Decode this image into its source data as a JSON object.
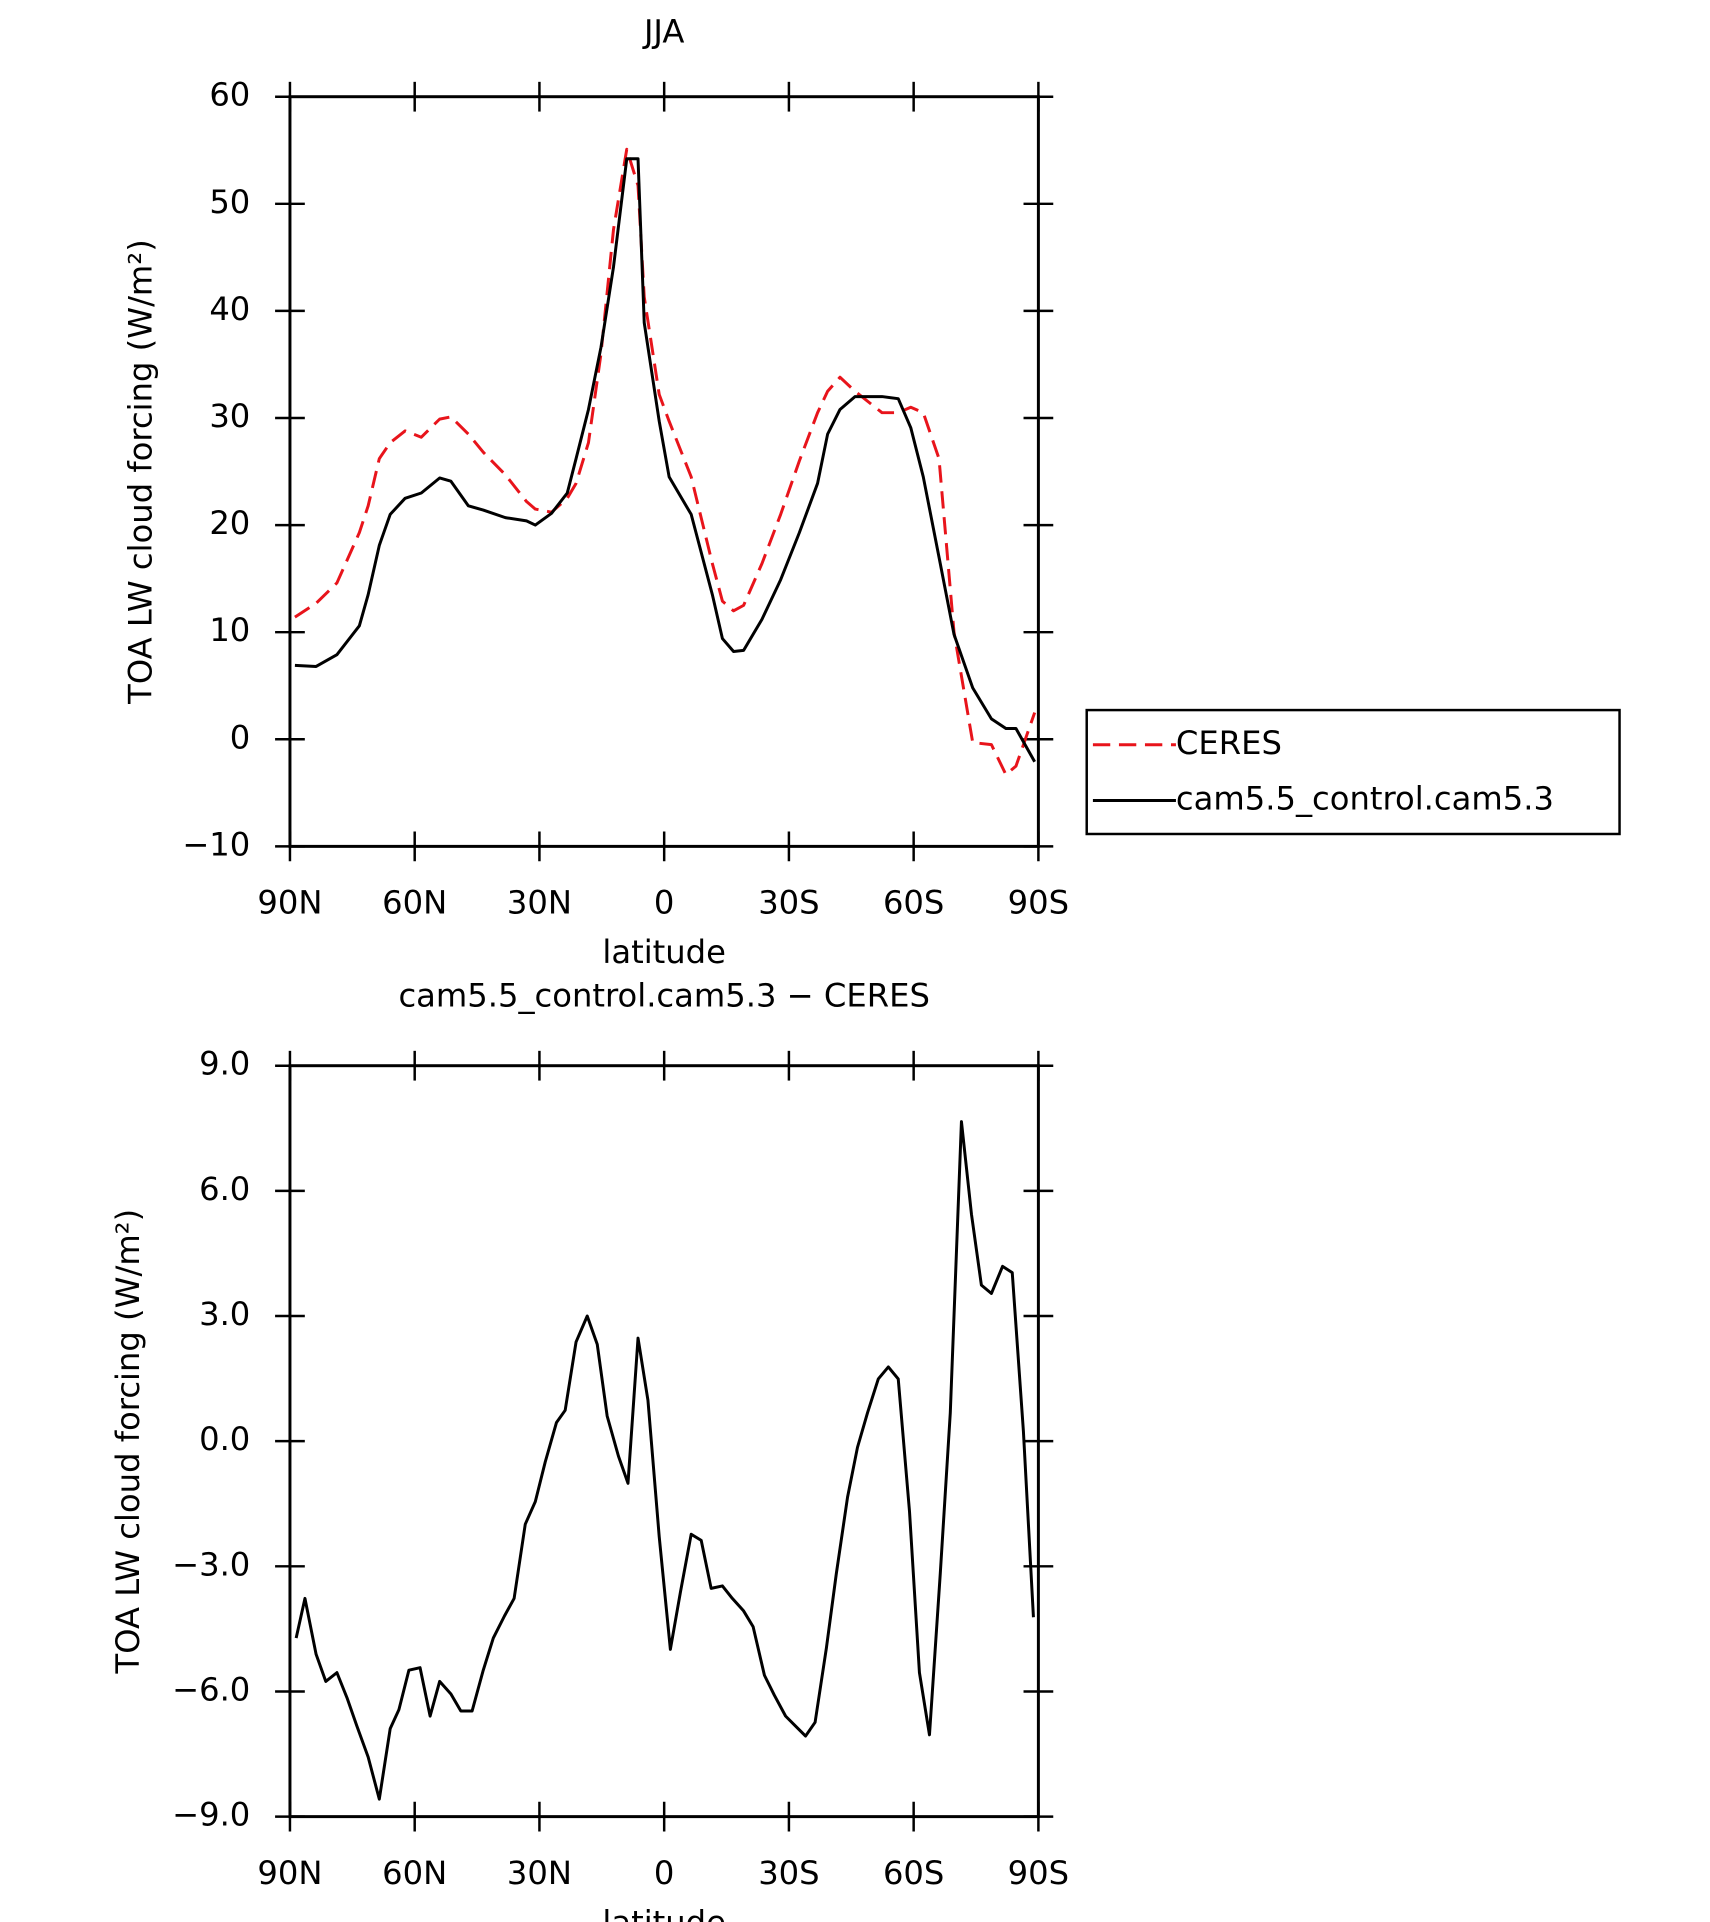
{
  "chart_data": [
    {
      "type": "line",
      "title": "JJA",
      "xlabel": "latitude",
      "ylabel": "TOA LW cloud forcing (W/m²)",
      "x": [
        88.8,
        83.7,
        78.7,
        73.3,
        71.2,
        68.5,
        65.9,
        62.3,
        58.4,
        54.0,
        51.3,
        47.1,
        43.5,
        38.2,
        33.1,
        31.0,
        27.1,
        23.3,
        21.2,
        18.2,
        15.2,
        12.2,
        9.0,
        6.3,
        4.8,
        1.2,
        -1.2,
        -6.5,
        -11.6,
        -14.0,
        -16.7,
        -19.1,
        -23.5,
        -28.0,
        -32.5,
        -36.9,
        -39.3,
        -42.3,
        -45.9,
        -52.4,
        -56.3,
        -59.3,
        -62.3,
        -66.1,
        -69.7,
        -74.2,
        -78.7,
        -82.2,
        -84.6,
        -89.1
      ],
      "series": [
        {
          "name": "CERES",
          "color": "#e8141b",
          "linestyle": "dashed",
          "values": [
            11.4,
            12.7,
            14.6,
            19.3,
            21.8,
            26.2,
            27.7,
            28.8,
            28.2,
            29.9,
            30.1,
            28.5,
            26.8,
            24.7,
            22.2,
            21.5,
            21.2,
            22.5,
            23.9,
            27.7,
            36.0,
            47.6,
            55.1,
            51.7,
            41.3,
            32.2,
            29.7,
            24.5,
            16.4,
            12.9,
            12.0,
            12.5,
            16.4,
            21.0,
            26.0,
            30.5,
            32.5,
            33.8,
            32.5,
            30.5,
            30.5,
            31.0,
            30.5,
            26.2,
            10.0,
            -0.3,
            -0.5,
            -3.3,
            -2.5,
            2.5
          ]
        },
        {
          "name": "cam5.5_control.cam5.3",
          "color": "#000000",
          "linestyle": "solid",
          "values": [
            6.9,
            6.8,
            7.9,
            10.6,
            13.5,
            18.1,
            21.0,
            22.5,
            23.0,
            24.4,
            24.1,
            21.8,
            21.4,
            20.7,
            20.4,
            20.0,
            21.1,
            23.0,
            26.2,
            30.8,
            36.6,
            44.1,
            54.2,
            54.2,
            38.9,
            29.7,
            24.5,
            21.0,
            13.5,
            9.4,
            8.2,
            8.3,
            11.2,
            14.9,
            19.3,
            23.9,
            28.5,
            30.8,
            32.0,
            32.0,
            31.8,
            29.1,
            24.5,
            17.0,
            9.8,
            4.8,
            1.9,
            1.0,
            1.0,
            -2.1
          ]
        }
      ],
      "xlim": [
        90,
        -90
      ],
      "xticks": [
        {
          "value": 90,
          "label": "90N"
        },
        {
          "value": 60,
          "label": "60N"
        },
        {
          "value": 30,
          "label": "30N"
        },
        0,
        {
          "value": -30,
          "label": "30S"
        },
        {
          "value": -60,
          "label": "60S"
        },
        {
          "value": -90,
          "label": "90S"
        }
      ],
      "ylim": [
        -10,
        60
      ],
      "yticks": [
        {
          "value": -10,
          "label": "−10"
        },
        0,
        10,
        20,
        30,
        40,
        50,
        60
      ],
      "legend": "right"
    },
    {
      "type": "line",
      "title": "cam5.5_control.cam5.3 − CERES",
      "xlabel": "latitude",
      "ylabel": "TOA LW cloud forcing (W/m²)",
      "x": [
        88.5,
        86.4,
        83.7,
        81.4,
        78.7,
        76.3,
        73.9,
        71.2,
        68.5,
        65.9,
        63.8,
        61.4,
        58.7,
        56.3,
        54.0,
        51.3,
        48.9,
        46.2,
        43.5,
        41.1,
        38.4,
        36.1,
        33.4,
        31.0,
        28.6,
        25.9,
        23.8,
        21.2,
        18.5,
        16.1,
        13.7,
        11.0,
        8.7,
        6.3,
        3.9,
        1.2,
        -1.5,
        -3.9,
        -6.5,
        -8.9,
        -11.3,
        -14.0,
        -16.4,
        -19.1,
        -21.4,
        -24.1,
        -26.5,
        -29.2,
        -31.6,
        -34.0,
        -36.3,
        -39.0,
        -41.4,
        -44.1,
        -46.5,
        -48.9,
        -51.5,
        -53.9,
        -56.3,
        -59.0,
        -61.4,
        -63.8,
        -66.4,
        -68.8,
        -71.5,
        -73.9,
        -76.3,
        -78.7,
        -81.4,
        -83.7,
        -86.4,
        -88.8
      ],
      "values": [
        -4.72,
        -3.77,
        -5.11,
        -5.76,
        -5.55,
        -6.15,
        -6.83,
        -7.57,
        -8.58,
        -6.89,
        -6.44,
        -5.49,
        -5.43,
        -6.59,
        -5.76,
        -6.06,
        -6.47,
        -6.47,
        -5.49,
        -4.72,
        -4.19,
        -3.77,
        -1.99,
        -1.45,
        -0.5,
        0.45,
        0.74,
        2.38,
        3.0,
        2.32,
        0.6,
        -0.36,
        -1.01,
        2.47,
        0.98,
        -2.29,
        -4.99,
        -3.62,
        -2.23,
        -2.38,
        -3.53,
        -3.47,
        -3.77,
        -4.07,
        -4.45,
        -5.61,
        -6.09,
        -6.59,
        -6.83,
        -7.07,
        -6.74,
        -4.96,
        -3.18,
        -1.34,
        -0.15,
        0.68,
        1.49,
        1.78,
        1.49,
        -1.69,
        -5.55,
        -7.04,
        -3.18,
        0.68,
        7.66,
        5.44,
        3.74,
        3.54,
        4.19,
        4.04,
        0.24,
        -4.22
      ],
      "color": "#000000",
      "xlim": [
        90,
        -90
      ],
      "xticks": [
        {
          "value": 90,
          "label": "90N"
        },
        {
          "value": 60,
          "label": "60N"
        },
        {
          "value": 30,
          "label": "30N"
        },
        0,
        {
          "value": -30,
          "label": "30S"
        },
        {
          "value": -60,
          "label": "60S"
        },
        {
          "value": -90,
          "label": "90S"
        }
      ],
      "ylim": [
        -9,
        9
      ],
      "yticks": [
        {
          "value": -9,
          "label": "−9.0"
        },
        {
          "value": -6,
          "label": "−6.0"
        },
        {
          "value": -3,
          "label": "−3.0"
        },
        {
          "value": 0,
          "label": "0.0"
        },
        {
          "value": 3,
          "label": "3.0"
        },
        {
          "value": 6,
          "label": "6.0"
        },
        {
          "value": 9,
          "label": "9.0"
        }
      ]
    }
  ]
}
